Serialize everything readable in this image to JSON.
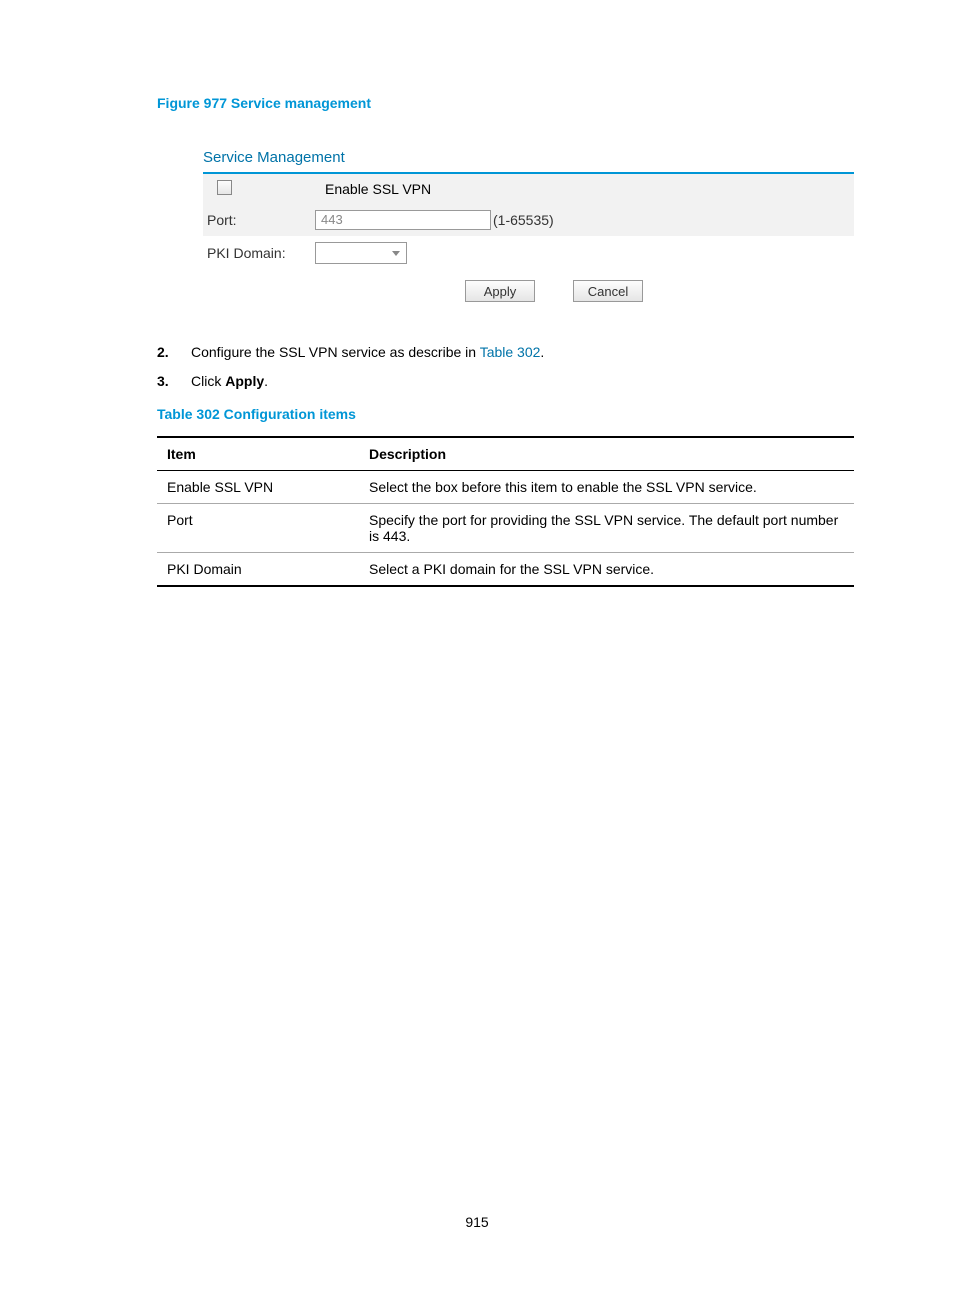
{
  "figure": {
    "caption": "Figure 977 Service management"
  },
  "panel": {
    "title": "Service Management",
    "checkbox_label": "Enable SSL VPN",
    "port_label": "Port:",
    "port_value": "443",
    "port_range": "(1-65535)",
    "pki_label": "PKI Domain:",
    "apply_label": "Apply",
    "cancel_label": "Cancel"
  },
  "steps": {
    "s2_num": "2.",
    "s2_text_a": "Configure the SSL VPN service as describe in ",
    "s2_link": "Table 302",
    "s2_text_b": ".",
    "s3_num": "3.",
    "s3_text_a": "Click ",
    "s3_bold": "Apply",
    "s3_text_b": "."
  },
  "table": {
    "caption": "Table 302 Configuration items",
    "head_item": "Item",
    "head_desc": "Description",
    "rows": [
      {
        "item": "Enable SSL VPN",
        "desc": "Select the box before this item to enable the SSL VPN service."
      },
      {
        "item": "Port",
        "desc": "Specify the port for providing the SSL VPN service. The default port number is 443."
      },
      {
        "item": "PKI Domain",
        "desc": "Select a PKI domain for the SSL VPN service."
      }
    ]
  },
  "page_number": "915"
}
